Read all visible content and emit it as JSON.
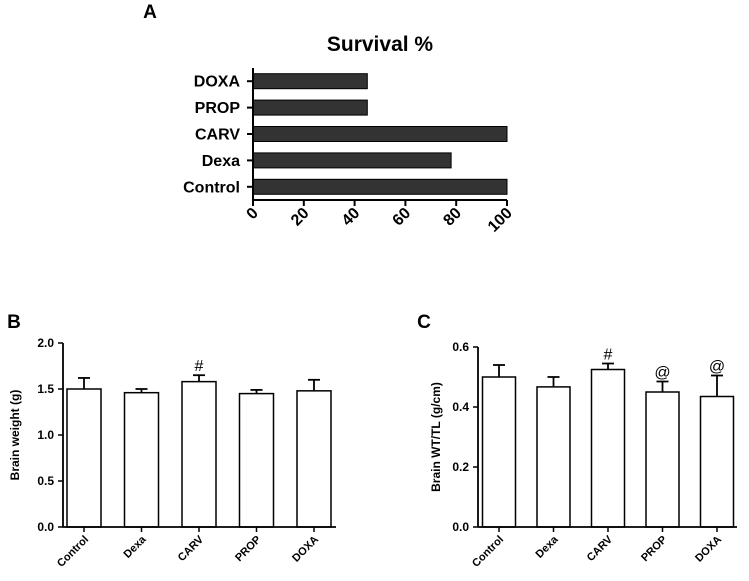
{
  "chart_data": [
    {
      "panel": "A",
      "type": "bar",
      "orientation": "horizontal",
      "title": "Survival %",
      "categories": [
        "Control",
        "Dexa",
        "CARV",
        "PROP",
        "DOXA"
      ],
      "values": [
        100,
        78,
        100,
        45,
        45
      ],
      "xlim": [
        0,
        100
      ],
      "xticks": [
        "0",
        "20",
        "40",
        "60",
        "80",
        "100"
      ],
      "bar_color": "#333333"
    },
    {
      "panel": "B",
      "type": "bar",
      "title": "",
      "ylabel": "Brain weight (g)",
      "categories": [
        "Control",
        "Dexa",
        "CARV",
        "PROP",
        "DOXA"
      ],
      "values": [
        1.5,
        1.46,
        1.58,
        1.45,
        1.48
      ],
      "errors": [
        0.12,
        0.04,
        0.07,
        0.04,
        0.12
      ],
      "annotations": [
        "",
        "",
        "#",
        "",
        ""
      ],
      "ylim": [
        0,
        2.0
      ],
      "yticks": [
        "0.0",
        "0.5",
        "1.0",
        "1.5",
        "2.0"
      ],
      "bar_color": "#ffffff"
    },
    {
      "panel": "C",
      "type": "bar",
      "title": "",
      "ylabel": "Brain WT/TL (g/cm)",
      "categories": [
        "Control",
        "Dexa",
        "CARV",
        "PROP",
        "DOXA"
      ],
      "values": [
        0.5,
        0.467,
        0.525,
        0.45,
        0.435
      ],
      "errors": [
        0.04,
        0.033,
        0.02,
        0.035,
        0.07
      ],
      "annotations": [
        "",
        "",
        "#",
        "@",
        "@"
      ],
      "ylim": [
        0,
        0.6
      ],
      "yticks": [
        "0.0",
        "0.2",
        "0.4",
        "0.6"
      ],
      "bar_color": "#ffffff"
    }
  ]
}
